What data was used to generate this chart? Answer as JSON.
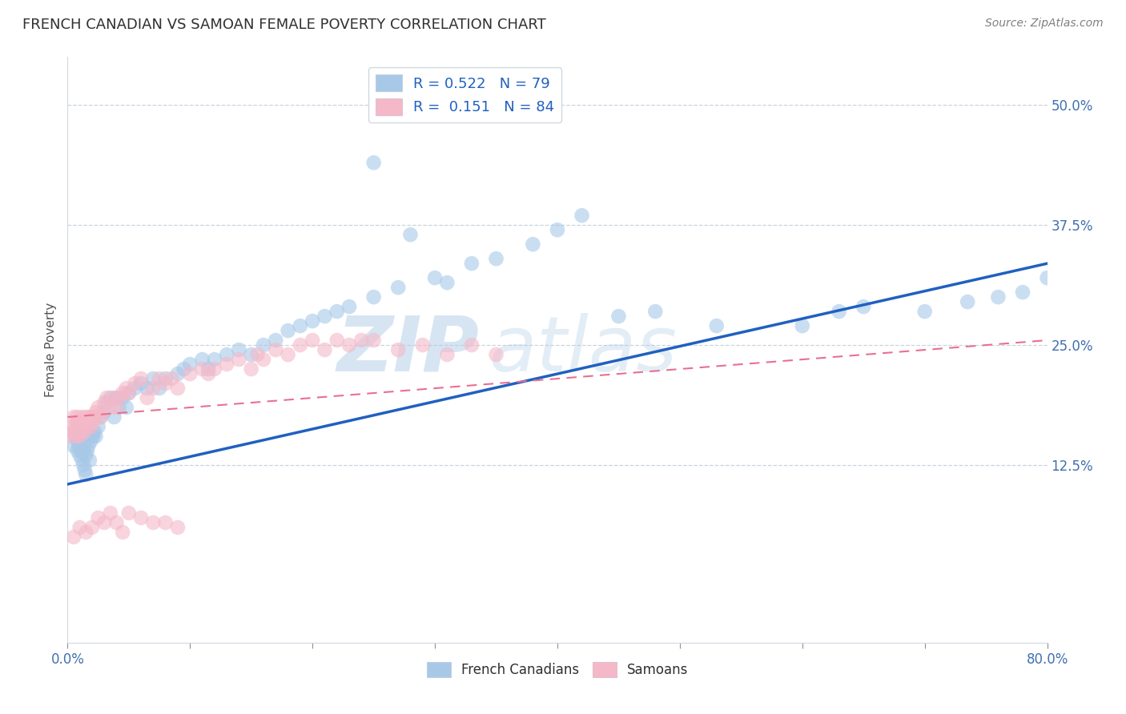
{
  "title": "FRENCH CANADIAN VS SAMOAN FEMALE POVERTY CORRELATION CHART",
  "source": "Source: ZipAtlas.com",
  "ylabel": "Female Poverty",
  "xlim": [
    0.0,
    0.8
  ],
  "ylim": [
    -0.06,
    0.55
  ],
  "blue_color": "#a8c8e8",
  "pink_color": "#f4b8c8",
  "blue_line_color": "#2060c0",
  "pink_line_color": "#e87090",
  "R_blue": 0.522,
  "N_blue": 79,
  "R_pink": 0.151,
  "N_pink": 84,
  "legend_label_blue": "French Canadians",
  "legend_label_pink": "Samoans",
  "watermark": "ZIPatlas",
  "blue_line_x0": 0.0,
  "blue_line_y0": 0.105,
  "blue_line_x1": 0.8,
  "blue_line_y1": 0.335,
  "pink_line_x0": 0.0,
  "pink_line_y0": 0.175,
  "pink_line_x1": 0.8,
  "pink_line_y1": 0.255,
  "blue_x": [
    0.005,
    0.006,
    0.007,
    0.008,
    0.008,
    0.009,
    0.01,
    0.01,
    0.011,
    0.012,
    0.013,
    0.014,
    0.014,
    0.015,
    0.015,
    0.016,
    0.017,
    0.018,
    0.019,
    0.02,
    0.021,
    0.022,
    0.023,
    0.025,
    0.027,
    0.03,
    0.032,
    0.035,
    0.038,
    0.04,
    0.042,
    0.045,
    0.048,
    0.05,
    0.055,
    0.06,
    0.065,
    0.07,
    0.075,
    0.08,
    0.09,
    0.095,
    0.1,
    0.11,
    0.115,
    0.12,
    0.13,
    0.14,
    0.15,
    0.16,
    0.17,
    0.18,
    0.19,
    0.2,
    0.21,
    0.22,
    0.23,
    0.25,
    0.27,
    0.3,
    0.31,
    0.33,
    0.35,
    0.38,
    0.4,
    0.42,
    0.45,
    0.48,
    0.53,
    0.6,
    0.63,
    0.65,
    0.7,
    0.735,
    0.76,
    0.78,
    0.8,
    0.25,
    0.28
  ],
  "blue_y": [
    0.145,
    0.155,
    0.16,
    0.15,
    0.14,
    0.145,
    0.135,
    0.15,
    0.14,
    0.13,
    0.125,
    0.12,
    0.145,
    0.115,
    0.135,
    0.14,
    0.145,
    0.13,
    0.15,
    0.155,
    0.155,
    0.16,
    0.155,
    0.165,
    0.175,
    0.18,
    0.19,
    0.195,
    0.175,
    0.195,
    0.185,
    0.195,
    0.185,
    0.2,
    0.205,
    0.21,
    0.205,
    0.215,
    0.205,
    0.215,
    0.22,
    0.225,
    0.23,
    0.235,
    0.225,
    0.235,
    0.24,
    0.245,
    0.24,
    0.25,
    0.255,
    0.265,
    0.27,
    0.275,
    0.28,
    0.285,
    0.29,
    0.3,
    0.31,
    0.32,
    0.315,
    0.335,
    0.34,
    0.355,
    0.37,
    0.385,
    0.28,
    0.285,
    0.27,
    0.27,
    0.285,
    0.29,
    0.285,
    0.295,
    0.3,
    0.305,
    0.32,
    0.44,
    0.365
  ],
  "pink_x": [
    0.003,
    0.004,
    0.005,
    0.005,
    0.006,
    0.007,
    0.007,
    0.008,
    0.008,
    0.009,
    0.01,
    0.01,
    0.011,
    0.012,
    0.012,
    0.013,
    0.014,
    0.015,
    0.015,
    0.016,
    0.017,
    0.018,
    0.019,
    0.02,
    0.021,
    0.022,
    0.023,
    0.025,
    0.027,
    0.028,
    0.03,
    0.032,
    0.035,
    0.038,
    0.04,
    0.042,
    0.045,
    0.048,
    0.05,
    0.055,
    0.06,
    0.065,
    0.07,
    0.075,
    0.08,
    0.085,
    0.09,
    0.1,
    0.11,
    0.115,
    0.12,
    0.13,
    0.14,
    0.15,
    0.155,
    0.16,
    0.17,
    0.18,
    0.19,
    0.2,
    0.21,
    0.22,
    0.23,
    0.24,
    0.25,
    0.27,
    0.29,
    0.31,
    0.33,
    0.35,
    0.005,
    0.01,
    0.015,
    0.02,
    0.025,
    0.03,
    0.035,
    0.04,
    0.045,
    0.05,
    0.06,
    0.07,
    0.08,
    0.09
  ],
  "pink_y": [
    0.155,
    0.16,
    0.165,
    0.175,
    0.16,
    0.17,
    0.155,
    0.165,
    0.175,
    0.16,
    0.17,
    0.155,
    0.16,
    0.165,
    0.175,
    0.165,
    0.16,
    0.17,
    0.175,
    0.165,
    0.17,
    0.175,
    0.165,
    0.175,
    0.17,
    0.175,
    0.18,
    0.185,
    0.175,
    0.18,
    0.19,
    0.195,
    0.185,
    0.195,
    0.185,
    0.195,
    0.2,
    0.205,
    0.2,
    0.21,
    0.215,
    0.195,
    0.205,
    0.215,
    0.21,
    0.215,
    0.205,
    0.22,
    0.225,
    0.22,
    0.225,
    0.23,
    0.235,
    0.225,
    0.24,
    0.235,
    0.245,
    0.24,
    0.25,
    0.255,
    0.245,
    0.255,
    0.25,
    0.255,
    0.255,
    0.245,
    0.25,
    0.24,
    0.25,
    0.24,
    0.05,
    0.06,
    0.055,
    0.06,
    0.07,
    0.065,
    0.075,
    0.065,
    0.055,
    0.075,
    0.07,
    0.065,
    0.065,
    0.06
  ]
}
